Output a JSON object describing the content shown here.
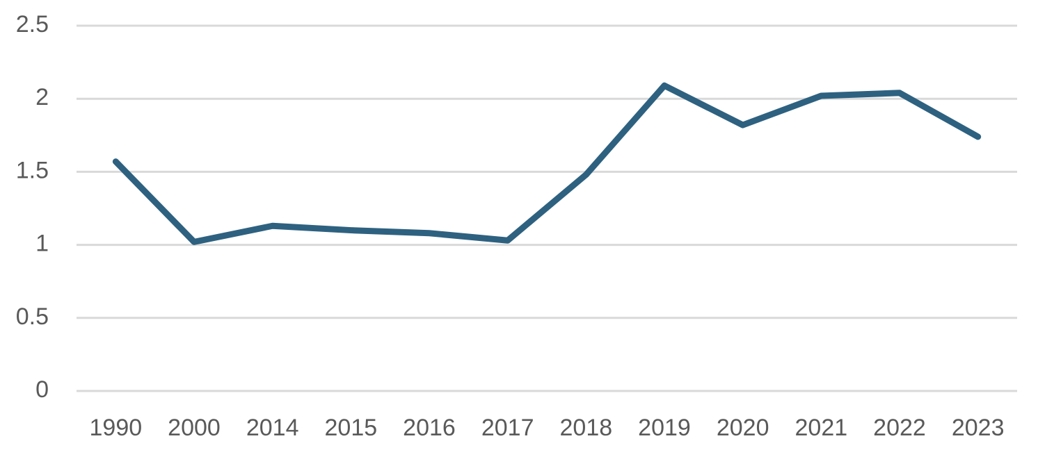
{
  "chart_data": {
    "type": "line",
    "categories": [
      "1990",
      "2000",
      "2014",
      "2015",
      "2016",
      "2017",
      "2018",
      "2019",
      "2020",
      "2021",
      "2022",
      "2023"
    ],
    "series": [
      {
        "color": "#2e6180",
        "values": [
          1.57,
          1.02,
          1.13,
          1.1,
          1.08,
          1.03,
          1.48,
          2.09,
          1.82,
          2.02,
          2.04,
          1.74
        ]
      }
    ],
    "ylim": [
      0,
      2.5
    ],
    "yticks": [
      0,
      0.5,
      1,
      1.5,
      2,
      2.5
    ],
    "grid": true
  }
}
